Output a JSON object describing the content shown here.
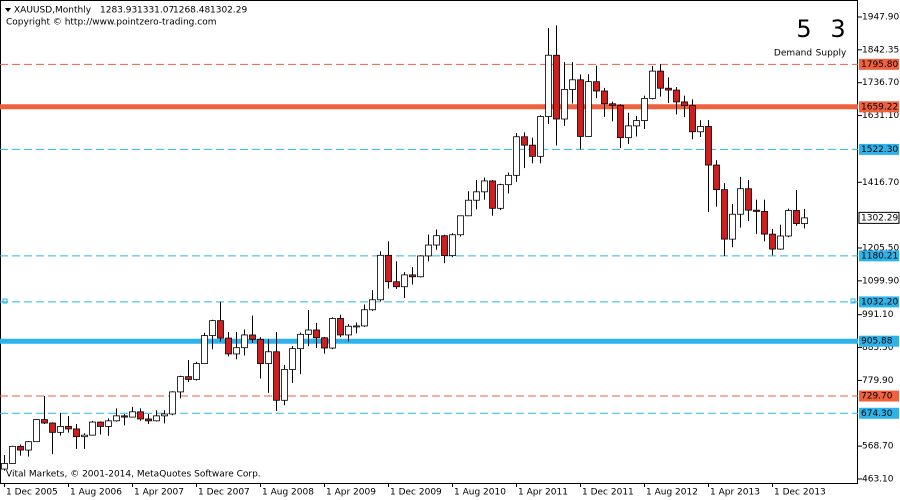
{
  "chart_data": {
    "type": "candlestick",
    "symbol": "XAUUSD,Monthly",
    "copyright": "Copyright © http://www.pointzero-trading.com",
    "footer": "Vital Markets, © 2001-2014, MetaQuotes Software Corp.",
    "zones": {
      "demand": {
        "count": 5,
        "label": "Demand",
        "color": "#2bb3ea"
      },
      "supply": {
        "count": 3,
        "label": "Supply",
        "color": "#f0603c"
      }
    },
    "bull_color": "#ffffff",
    "bear_color": "#d41c1c",
    "categories": [
      "1 Dec 2005",
      null,
      null,
      null,
      null,
      null,
      null,
      null,
      "1 Aug 2006",
      null,
      null,
      null,
      null,
      null,
      null,
      null,
      "1 Apr 2007",
      null,
      null,
      null,
      null,
      null,
      null,
      null,
      "1 Dec 2007",
      null,
      null,
      null,
      null,
      null,
      null,
      null,
      "1 Aug 2008",
      null,
      null,
      null,
      null,
      null,
      null,
      null,
      "1 Apr 2009",
      null,
      null,
      null,
      null,
      null,
      null,
      null,
      "1 Dec 2009",
      null,
      null,
      null,
      null,
      null,
      null,
      null,
      "1 Aug 2010",
      null,
      null,
      null,
      null,
      null,
      null,
      null,
      "1 Apr 2011",
      null,
      null,
      null,
      null,
      null,
      null,
      null,
      "1 Dec 2011",
      null,
      null,
      null,
      null,
      null,
      null,
      null,
      "1 Aug 2012",
      null,
      null,
      null,
      null,
      null,
      null,
      null,
      "1 Apr 2013",
      null,
      null,
      null,
      null,
      null,
      null,
      null,
      "1 Dec 2013",
      null,
      null,
      null,
      null
    ],
    "open": [
      495,
      513,
      568,
      556,
      583,
      654,
      643,
      613,
      632,
      624,
      599,
      604,
      646,
      632,
      650,
      666,
      662,
      679,
      656,
      650,
      666,
      672,
      743,
      792,
      783,
      834,
      924,
      972,
      916,
      865,
      885,
      926,
      912,
      834,
      872,
      716,
      815,
      882,
      928,
      942,
      917,
      884,
      979,
      926,
      954,
      955,
      1007,
      1039,
      1182,
      1097,
      1081,
      1119,
      1113,
      1180,
      1215,
      1245,
      1181,
      1248,
      1309,
      1359,
      1386,
      1421,
      1333,
      1409,
      1439,
      1563,
      1536,
      1500,
      1628,
      1825,
      1620,
      1715,
      1746,
      1564,
      1740,
      1710,
      1669,
      1664,
      1560,
      1598,
      1615,
      1686,
      1774,
      1719,
      1713,
      1675,
      1663,
      1579,
      1596,
      1472,
      1393,
      1234,
      1314,
      1396,
      1327,
      1323,
      1250,
      1202,
      1244,
      1326,
      1283.93
    ],
    "high": [
      540,
      570,
      574,
      585,
      655,
      730,
      645,
      675,
      665,
      640,
      610,
      650,
      648,
      658,
      690,
      672,
      695,
      690,
      672,
      684,
      684,
      745,
      795,
      845,
      840,
      933,
      975,
      1032,
      935,
      936,
      944,
      988,
      919,
      912,
      935,
      830,
      890,
      934,
      1006,
      965,
      920,
      983,
      991,
      961,
      966,
      1024,
      1070,
      1195,
      1227,
      1163,
      1128,
      1144,
      1182,
      1249,
      1265,
      1248,
      1253,
      1310,
      1388,
      1424,
      1432,
      1424,
      1412,
      1448,
      1575,
      1577,
      1560,
      1632,
      1912,
      1921,
      1803,
      1803,
      1763,
      1764,
      1791,
      1720,
      1676,
      1668,
      1640,
      1630,
      1695,
      1790,
      1796,
      1754,
      1723,
      1695,
      1683,
      1616,
      1617,
      1488,
      1414,
      1347,
      1434,
      1424,
      1361,
      1361,
      1267,
      1280,
      1332,
      1392,
      1331.07
    ],
    "low": [
      490,
      512,
      538,
      535,
      582,
      640,
      543,
      603,
      612,
      560,
      560,
      603,
      606,
      602,
      647,
      636,
      663,
      650,
      640,
      648,
      642,
      668,
      722,
      775,
      780,
      834,
      880,
      905,
      857,
      848,
      860,
      900,
      786,
      740,
      682,
      700,
      772,
      800,
      890,
      884,
      866,
      880,
      919,
      905,
      931,
      952,
      1003,
      1033,
      1075,
      1074,
      1045,
      1088,
      1111,
      1163,
      1200,
      1157,
      1176,
      1242,
      1308,
      1330,
      1361,
      1309,
      1327,
      1381,
      1418,
      1462,
      1478,
      1478,
      1604,
      1535,
      1598,
      1670,
      1523,
      1564,
      1687,
      1627,
      1613,
      1527,
      1540,
      1564,
      1588,
      1683,
      1692,
      1672,
      1635,
      1626,
      1555,
      1562,
      1321,
      1338,
      1180,
      1208,
      1271,
      1292,
      1251,
      1227,
      1182,
      1200,
      1240,
      1277,
      1268.48
    ],
    "close": [
      513,
      568,
      556,
      583,
      654,
      643,
      613,
      632,
      624,
      599,
      604,
      646,
      632,
      650,
      666,
      662,
      679,
      656,
      650,
      666,
      672,
      743,
      792,
      783,
      834,
      924,
      972,
      916,
      865,
      885,
      926,
      912,
      834,
      872,
      716,
      815,
      882,
      928,
      942,
      917,
      884,
      979,
      926,
      954,
      955,
      1007,
      1039,
      1182,
      1097,
      1081,
      1119,
      1113,
      1180,
      1215,
      1245,
      1181,
      1248,
      1309,
      1359,
      1386,
      1421,
      1333,
      1409,
      1439,
      1563,
      1536,
      1500,
      1628,
      1825,
      1620,
      1715,
      1746,
      1564,
      1740,
      1710,
      1669,
      1664,
      1560,
      1598,
      1615,
      1686,
      1774,
      1719,
      1713,
      1675,
      1663,
      1579,
      1596,
      1472,
      1393,
      1234,
      1314,
      1396,
      1327,
      1323,
      1250,
      1202,
      1244,
      1326,
      1284,
      1302.29
    ],
    "levels": [
      {
        "value": 1795.8,
        "label": "1795.80",
        "color": "#f0603c",
        "style": "dashed"
      },
      {
        "value": 1659.22,
        "label": "1659.22",
        "color": "#f0603c",
        "style": "solid"
      },
      {
        "value": 1522.3,
        "label": "1522.30",
        "color": "#2bb3ea",
        "style": "dashed"
      },
      {
        "value": 1180.21,
        "label": "1180.21",
        "color": "#2bb3ea",
        "style": "dashed"
      },
      {
        "value": 1032.2,
        "label": "1032.20",
        "color": "#2bb3ea",
        "style": "dashed"
      },
      {
        "value": 905.88,
        "label": "905.88",
        "color": "#2bb3ea",
        "style": "solid"
      },
      {
        "value": 729.7,
        "label": "729.70",
        "color": "#f0603c",
        "style": "dashed"
      },
      {
        "value": 674.3,
        "label": "674.30",
        "color": "#2bb3ea",
        "style": "dashed"
      }
    ],
    "ylim": [
      450.2,
      2002.5
    ],
    "yticks": [
      {
        "value": 1947.9,
        "label": "1947.90"
      },
      {
        "value": 1842.35,
        "label": "1842.35"
      },
      {
        "value": 1736.7,
        "label": "1736.70"
      },
      {
        "value": 1631.1,
        "label": "1631.10"
      },
      {
        "value": 1416.7,
        "label": "1416.70"
      },
      {
        "value": 1205.5,
        "label": "1205.50"
      },
      {
        "value": 1099.9,
        "label": "1099.90"
      },
      {
        "value": 991.1,
        "label": "991.10"
      },
      {
        "value": 885.5,
        "label": "885.50"
      },
      {
        "value": 779.9,
        "label": "779.90"
      },
      {
        "value": 568.7,
        "label": "568.70"
      },
      {
        "value": 463.1,
        "label": "463.10"
      }
    ]
  }
}
